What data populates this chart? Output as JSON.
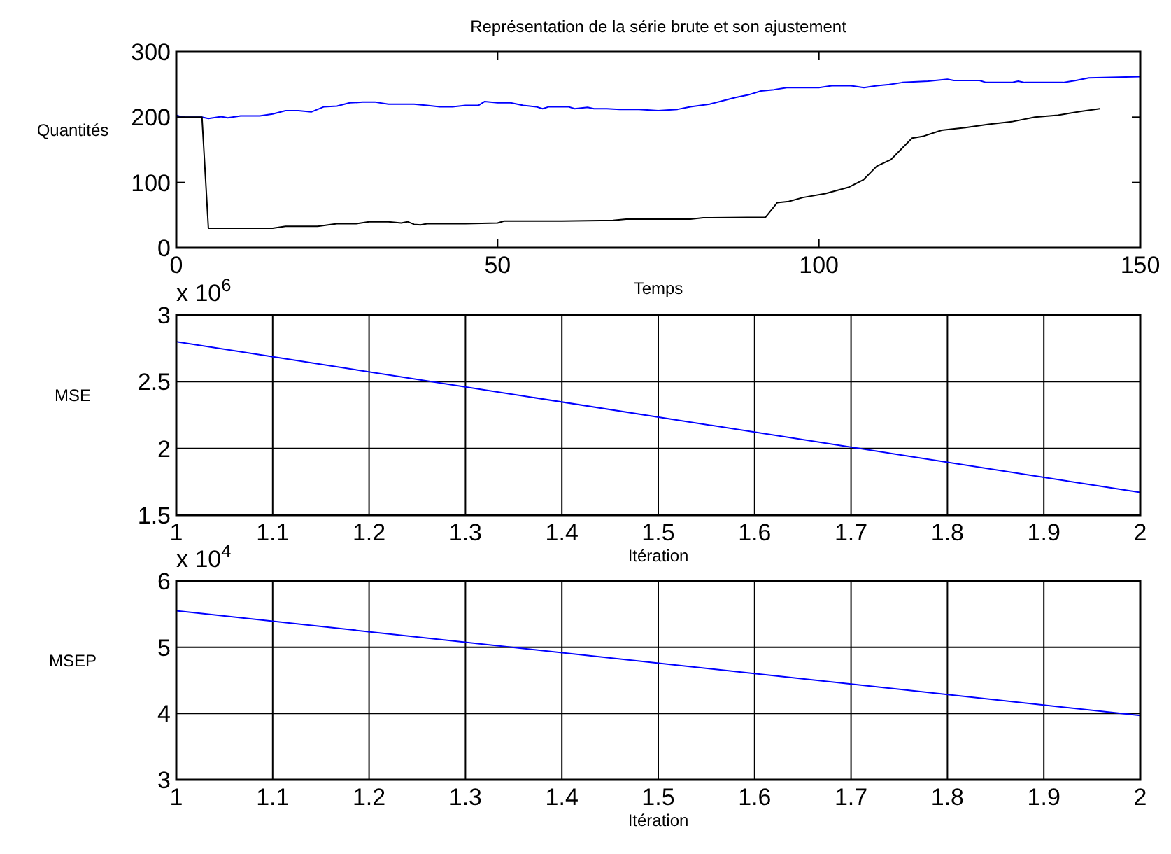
{
  "chart_data": [
    {
      "type": "line",
      "title": "Représentation de la série brute et son ajustement",
      "xlabel": "Temps",
      "ylabel": "Quantités",
      "xlim": [
        0,
        150
      ],
      "ylim": [
        0,
        300
      ],
      "xticks": [
        0,
        50,
        100,
        150
      ],
      "yticks": [
        0,
        100,
        200,
        300
      ],
      "grid": false,
      "series": [
        {
          "color": "#0000ff",
          "x": [
            0,
            1,
            4,
            5,
            7,
            8,
            10,
            13,
            15,
            17,
            19,
            21,
            23,
            25,
            27,
            29,
            31,
            33,
            35,
            37,
            39,
            41,
            43,
            45,
            47,
            48,
            50,
            52,
            54,
            56,
            57,
            58,
            61,
            62,
            64,
            65,
            67,
            69,
            72,
            75,
            78,
            80,
            83,
            85,
            87,
            89,
            91,
            93,
            95,
            100,
            102,
            105,
            107,
            109,
            111,
            113,
            117,
            120,
            121,
            125,
            126,
            130,
            131,
            132,
            138,
            140,
            142,
            150
          ],
          "values": [
            203,
            200,
            200,
            198,
            201,
            199,
            202,
            202,
            205,
            210,
            210,
            208,
            216,
            217,
            222,
            223,
            223,
            220,
            220,
            220,
            218,
            216,
            216,
            218,
            218,
            224,
            222,
            222,
            218,
            216,
            213,
            216,
            216,
            213,
            215,
            213,
            213,
            212,
            212,
            210,
            212,
            216,
            220,
            225,
            230,
            234,
            240,
            242,
            245,
            245,
            248,
            248,
            245,
            248,
            250,
            253,
            255,
            258,
            256,
            256,
            253,
            253,
            255,
            253,
            253,
            256,
            260,
            262
          ]
        },
        {
          "color": "#000000",
          "x": [
            0,
            4,
            5,
            15,
            17,
            22,
            25,
            28,
            30,
            33,
            35,
            36,
            37,
            38,
            39,
            45,
            50,
            51,
            60,
            68,
            70,
            80,
            82,
            91.7,
            93.5,
            95.3,
            97.5,
            101,
            104.7,
            106.9,
            109,
            111.2,
            112.7,
            114.5,
            116.3,
            119.1,
            122.8,
            126.4,
            130,
            133.6,
            137.2,
            140.8,
            143.7
          ],
          "values": [
            200,
            200,
            30,
            30,
            33,
            33,
            37,
            37,
            40,
            40,
            38,
            40,
            36,
            35,
            37,
            37,
            38,
            41,
            41,
            42,
            44,
            44,
            46,
            47,
            69,
            71,
            77,
            83,
            93,
            104,
            125,
            135,
            150,
            168,
            171,
            180,
            184,
            189,
            193,
            200,
            203,
            209,
            213
          ]
        }
      ]
    },
    {
      "type": "line",
      "xlabel": "Itération",
      "ylabel": "MSE",
      "annotations": [
        "x 10$^{6}$"
      ],
      "xlim": [
        1,
        2
      ],
      "ylim": [
        1.5,
        3
      ],
      "xticks": [
        1,
        1.1,
        1.2,
        1.3,
        1.4,
        1.5,
        1.6,
        1.7,
        1.8,
        1.9,
        2
      ],
      "yticks": [
        1.5,
        2,
        2.5,
        3
      ],
      "grid": true,
      "series": [
        {
          "color": "#0000ff",
          "x": [
            1,
            2
          ],
          "values": [
            2.8,
            1.67
          ]
        }
      ]
    },
    {
      "type": "line",
      "xlabel": "Itération",
      "ylabel": "MSEP",
      "annotations": [
        "x 10$^{4}$"
      ],
      "xlim": [
        1,
        2
      ],
      "ylim": [
        3,
        6
      ],
      "xticks": [
        1,
        1.1,
        1.2,
        1.3,
        1.4,
        1.5,
        1.6,
        1.7,
        1.8,
        1.9,
        2
      ],
      "yticks": [
        3,
        4,
        5,
        6
      ],
      "grid": true,
      "series": [
        {
          "color": "#0000ff",
          "x": [
            1,
            2
          ],
          "values": [
            5.55,
            3.97
          ]
        }
      ]
    }
  ]
}
